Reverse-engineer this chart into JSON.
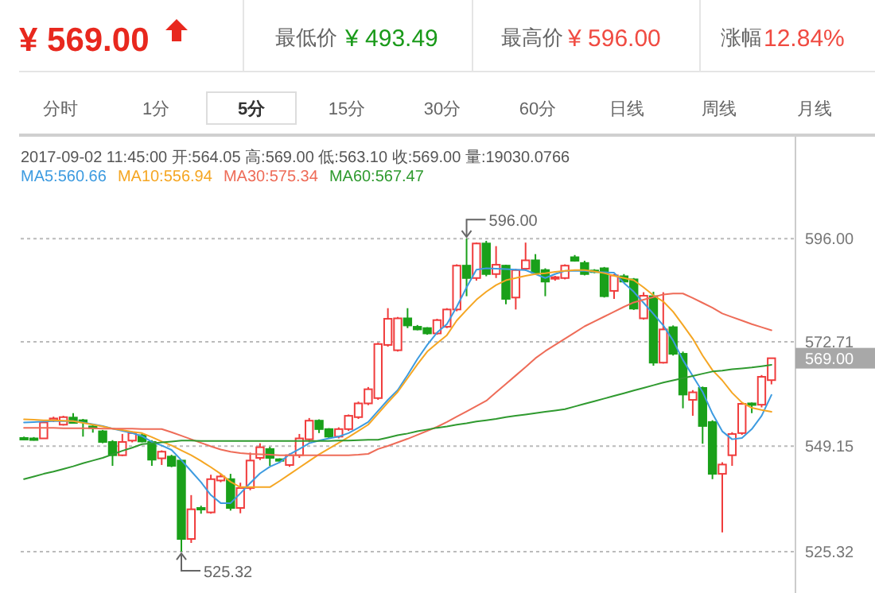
{
  "chart_data": [
    {
      "type": "other",
      "annotations": [
        "¥ 569.00",
        "最低价",
        "¥ 493.49",
        "最高价",
        "¥ 596.00",
        "涨幅",
        "12.84%",
        "分时",
        "1分",
        "5分",
        "15分",
        "30分",
        "60分",
        "日线",
        "周线",
        "月线"
      ]
    },
    {
      "type": "candlestick",
      "subtitle": "2017-09-02 11:45:00  开:564.05 高:569.00 低:563.10 收:569.00 量:19030.0766",
      "legend": "top left",
      "grid": "y",
      "categories": [
        null,
        null,
        null,
        null,
        null,
        null,
        null,
        null,
        null,
        null,
        null,
        null,
        null,
        null,
        null,
        null,
        null,
        null,
        null,
        null,
        null,
        null,
        null,
        null,
        null,
        null,
        null,
        null,
        null,
        null,
        null,
        null,
        null,
        null,
        null,
        null,
        null,
        null,
        null,
        null,
        null,
        null,
        null,
        null,
        null,
        null,
        null,
        null,
        null,
        null,
        null,
        null,
        null,
        null,
        null,
        null,
        null,
        null,
        null,
        null,
        null,
        null,
        null,
        null,
        null,
        null,
        null,
        null,
        null,
        null,
        null,
        null,
        null,
        null,
        null,
        null,
        null
      ],
      "ohlc": [
        [
          551.0,
          551.3,
          550.5,
          550.8
        ],
        [
          550.9,
          551.2,
          550.4,
          550.7
        ],
        [
          550.9,
          554.8,
          550.9,
          554.5
        ],
        [
          555.0,
          555.8,
          554.6,
          555.4
        ],
        [
          554.0,
          556.0,
          553.8,
          555.7
        ],
        [
          555.6,
          556.6,
          554.2,
          554.4
        ],
        [
          555.0,
          555.3,
          551.3,
          554.6
        ],
        [
          553.6,
          554.2,
          552.2,
          553.2
        ],
        [
          552.5,
          552.8,
          549.8,
          550.1
        ],
        [
          550.1,
          550.5,
          544.7,
          547.1
        ],
        [
          547.1,
          551.9,
          546.9,
          550.1
        ],
        [
          550.4,
          552.5,
          550.0,
          552.1
        ],
        [
          551.6,
          552.0,
          550.0,
          550.2
        ],
        [
          550.1,
          550.5,
          544.7,
          546.1
        ],
        [
          546.4,
          548.2,
          544.9,
          547.9
        ],
        [
          546.8,
          547.2,
          544.4,
          544.7
        ],
        [
          545.9,
          546.0,
          525.32,
          528.2
        ],
        [
          528.2,
          538.1,
          527.3,
          534.9
        ],
        [
          535.2,
          535.7,
          533.9,
          534.9
        ],
        [
          534.2,
          542.7,
          533.9,
          541.7
        ],
        [
          541.4,
          542.9,
          541.0,
          542.3
        ],
        [
          541.7,
          542.9,
          534.6,
          535.2
        ],
        [
          535.2,
          540.9,
          534.0,
          539.7
        ],
        [
          539.7,
          547.7,
          539.2,
          545.9
        ],
        [
          546.5,
          549.8,
          546.0,
          548.9
        ],
        [
          548.5,
          549.0,
          544.7,
          546.5
        ],
        [
          546.2,
          546.4,
          545.7,
          545.9
        ],
        [
          544.9,
          547.5,
          544.5,
          547.1
        ],
        [
          547.1,
          551.9,
          546.5,
          550.9
        ],
        [
          550.7,
          555.5,
          550.0,
          554.9
        ],
        [
          554.9,
          555.2,
          552.1,
          553.0
        ],
        [
          553.0,
          553.2,
          551.0,
          551.3
        ],
        [
          551.3,
          553.4,
          550.9,
          553.0
        ],
        [
          553.0,
          556.3,
          552.6,
          556.0
        ],
        [
          555.7,
          559.2,
          555.3,
          558.8
        ],
        [
          558.8,
          562.5,
          558.4,
          562.0
        ],
        [
          560.0,
          572.5,
          559.6,
          572.2
        ],
        [
          572.0,
          580.3,
          571.6,
          577.9
        ],
        [
          570.8,
          578.3,
          570.5,
          578.0
        ],
        [
          578.0,
          580.3,
          575.8,
          576.4
        ],
        [
          576.1,
          576.5,
          575.3,
          575.5
        ],
        [
          575.8,
          576.0,
          574.3,
          574.6
        ],
        [
          574.6,
          577.9,
          574.3,
          577.6
        ],
        [
          576.1,
          580.3,
          575.8,
          580.0
        ],
        [
          580.0,
          590.2,
          579.6,
          589.9
        ],
        [
          589.9,
          596.0,
          583.0,
          587.1
        ],
        [
          587.1,
          595.1,
          586.5,
          594.9
        ],
        [
          594.9,
          595.5,
          587.5,
          588.0
        ],
        [
          588.0,
          594.3,
          587.1,
          590.1
        ],
        [
          589.9,
          590.1,
          581.2,
          582.4
        ],
        [
          582.7,
          589.2,
          580.0,
          588.9
        ],
        [
          589.2,
          595.1,
          588.7,
          591.1
        ],
        [
          591.1,
          592.5,
          587.8,
          588.3
        ],
        [
          588.9,
          589.3,
          583.0,
          586.3
        ],
        [
          587.0,
          587.6,
          586.5,
          587.3
        ],
        [
          587.1,
          590.2,
          586.8,
          589.9
        ],
        [
          591.8,
          592.3,
          590.8,
          591.0
        ],
        [
          590.5,
          591.0,
          587.7,
          588.0
        ],
        [
          588.8,
          589.1,
          588.2,
          588.5
        ],
        [
          589.3,
          589.6,
          582.7,
          583.0
        ],
        [
          584.2,
          588.0,
          582.4,
          587.7
        ],
        [
          587.5,
          588.0,
          586.0,
          586.3
        ],
        [
          586.8,
          587.1,
          579.9,
          580.2
        ],
        [
          578.0,
          583.9,
          577.7,
          583.1
        ],
        [
          583.0,
          584.0,
          567.3,
          568.0
        ],
        [
          568.0,
          583.9,
          567.8,
          575.5
        ],
        [
          576.0,
          576.4,
          569.6,
          570.0
        ],
        [
          570.0,
          570.5,
          557.7,
          560.8
        ],
        [
          559.6,
          561.8,
          556.0,
          561.3
        ],
        [
          562.3,
          562.6,
          549.7,
          553.7
        ],
        [
          554.6,
          555.0,
          541.7,
          542.9
        ],
        [
          542.9,
          545.5,
          529.7,
          545.0
        ],
        [
          547.1,
          552.3,
          544.7,
          551.9
        ],
        [
          552.1,
          559.0,
          551.7,
          558.7
        ],
        [
          558.8,
          559.0,
          556.6,
          558.5
        ],
        [
          558.5,
          565.2,
          557.9,
          564.8
        ],
        [
          564.05,
          569.0,
          563.1,
          569.0
        ]
      ],
      "series": [
        {
          "name": "MA5:560.66",
          "type": "line",
          "color": "#3d9be0",
          "values": [
            554.5,
            554.6,
            554.7,
            554.8,
            554.8,
            554.8,
            554.5,
            554.1,
            553.7,
            553.1,
            552.6,
            552.1,
            551.4,
            550.1,
            549.3,
            548.3,
            546.0,
            543.5,
            541.0,
            538.1,
            536.3,
            536.3,
            538.5,
            540.8,
            543.0,
            544.5,
            545.5,
            547.3,
            548.5,
            549.8,
            550.4,
            550.9,
            551.3,
            552.1,
            553.3,
            554.6,
            557.1,
            559.6,
            561.8,
            565.2,
            568.8,
            572.0,
            574.8,
            576.7,
            580.6,
            585.0,
            589.0,
            589.3,
            589.2,
            589.1,
            589.0,
            588.9,
            588.0,
            587.1,
            588.0,
            588.7,
            588.7,
            588.7,
            588.5,
            588.4,
            588.3,
            586.0,
            584.0,
            581.5,
            579.0,
            576.4,
            573.0,
            568.6,
            565.0,
            561.4,
            556.5,
            552.5,
            550.7,
            551.0,
            553.0,
            556.0,
            560.7
          ]
        },
        {
          "name": "MA10:556.94",
          "type": "line",
          "color": "#f5a623",
          "values": [
            555.2,
            555.1,
            555.0,
            555.0,
            554.9,
            554.8,
            554.4,
            554.0,
            553.6,
            553.1,
            552.8,
            552.4,
            552.1,
            551.2,
            550.2,
            549.3,
            548.2,
            547.1,
            545.8,
            544.4,
            542.9,
            541.1,
            539.9,
            539.9,
            539.9,
            539.9,
            541.3,
            542.8,
            544.3,
            545.8,
            547.3,
            548.6,
            549.9,
            551.2,
            552.6,
            554.0,
            556.5,
            559.0,
            561.4,
            564.5,
            567.6,
            570.5,
            572.4,
            574.2,
            577.5,
            579.9,
            582.2,
            584.0,
            585.5,
            586.6,
            587.1,
            587.6,
            588.0,
            588.2,
            588.5,
            588.7,
            588.9,
            588.9,
            588.6,
            588.2,
            587.6,
            587.1,
            586.6,
            585.0,
            583.2,
            581.8,
            579.5,
            576.5,
            573.4,
            569.6,
            566.3,
            564.0,
            561.2,
            559.0,
            557.8,
            557.3,
            556.9
          ]
        },
        {
          "name": "MA30:575.34",
          "type": "line",
          "color": "#ee6c58",
          "values": [
            553.3,
            553.3,
            553.3,
            553.3,
            553.2,
            553.2,
            553.2,
            553.2,
            553.1,
            553.1,
            553.1,
            553.1,
            553.0,
            553.0,
            553.0,
            552.3,
            551.5,
            550.7,
            549.9,
            549.1,
            548.4,
            547.9,
            547.6,
            547.4,
            547.3,
            547.2,
            547.1,
            547.1,
            547.1,
            547.1,
            547.1,
            547.1,
            547.1,
            547.1,
            547.2,
            547.4,
            548.5,
            549.2,
            550.0,
            550.8,
            551.7,
            552.6,
            553.5,
            554.6,
            555.8,
            557.0,
            558.2,
            559.4,
            561.3,
            563.2,
            565.1,
            567.0,
            569.0,
            570.6,
            572.0,
            573.4,
            574.8,
            576.2,
            577.3,
            578.4,
            579.5,
            580.6,
            581.6,
            582.2,
            582.8,
            583.4,
            583.6,
            583.6,
            582.6,
            581.5,
            580.4,
            579.1,
            578.3,
            577.5,
            576.7,
            576.0,
            575.3
          ]
        },
        {
          "name": "MA60:567.47",
          "type": "line",
          "color": "#2f9a2f",
          "values": [
            541.7,
            542.3,
            542.9,
            543.4,
            544.0,
            544.6,
            545.3,
            545.9,
            546.5,
            547.3,
            548.1,
            548.8,
            549.6,
            549.8,
            550.0,
            550.2,
            550.4,
            550.4,
            550.3,
            550.3,
            550.3,
            550.3,
            550.3,
            550.3,
            550.3,
            550.3,
            550.3,
            550.3,
            550.3,
            550.3,
            550.3,
            550.3,
            550.4,
            550.4,
            550.5,
            550.6,
            550.6,
            551.1,
            551.6,
            552.0,
            552.5,
            552.9,
            553.3,
            553.6,
            554.0,
            554.3,
            554.7,
            555.0,
            555.3,
            555.7,
            556.0,
            556.3,
            556.6,
            556.9,
            557.2,
            557.5,
            558.1,
            558.7,
            559.3,
            559.9,
            560.5,
            561.1,
            561.7,
            562.3,
            562.9,
            563.5,
            564.0,
            564.5,
            565.0,
            565.5,
            566.0,
            566.2,
            566.5,
            566.7,
            566.9,
            567.2,
            567.5
          ]
        }
      ],
      "ylim": [
        516,
        619
      ],
      "yticks": [
        {
          "value": 596,
          "label": "596.00"
        },
        {
          "value": 572.71,
          "label": "572.71"
        },
        {
          "value": 549.15,
          "label": "549.15"
        },
        {
          "value": 525.32,
          "label": "525.32"
        }
      ],
      "annotations": [
        "596.00",
        "525.32",
        "569.00"
      ]
    }
  ]
}
